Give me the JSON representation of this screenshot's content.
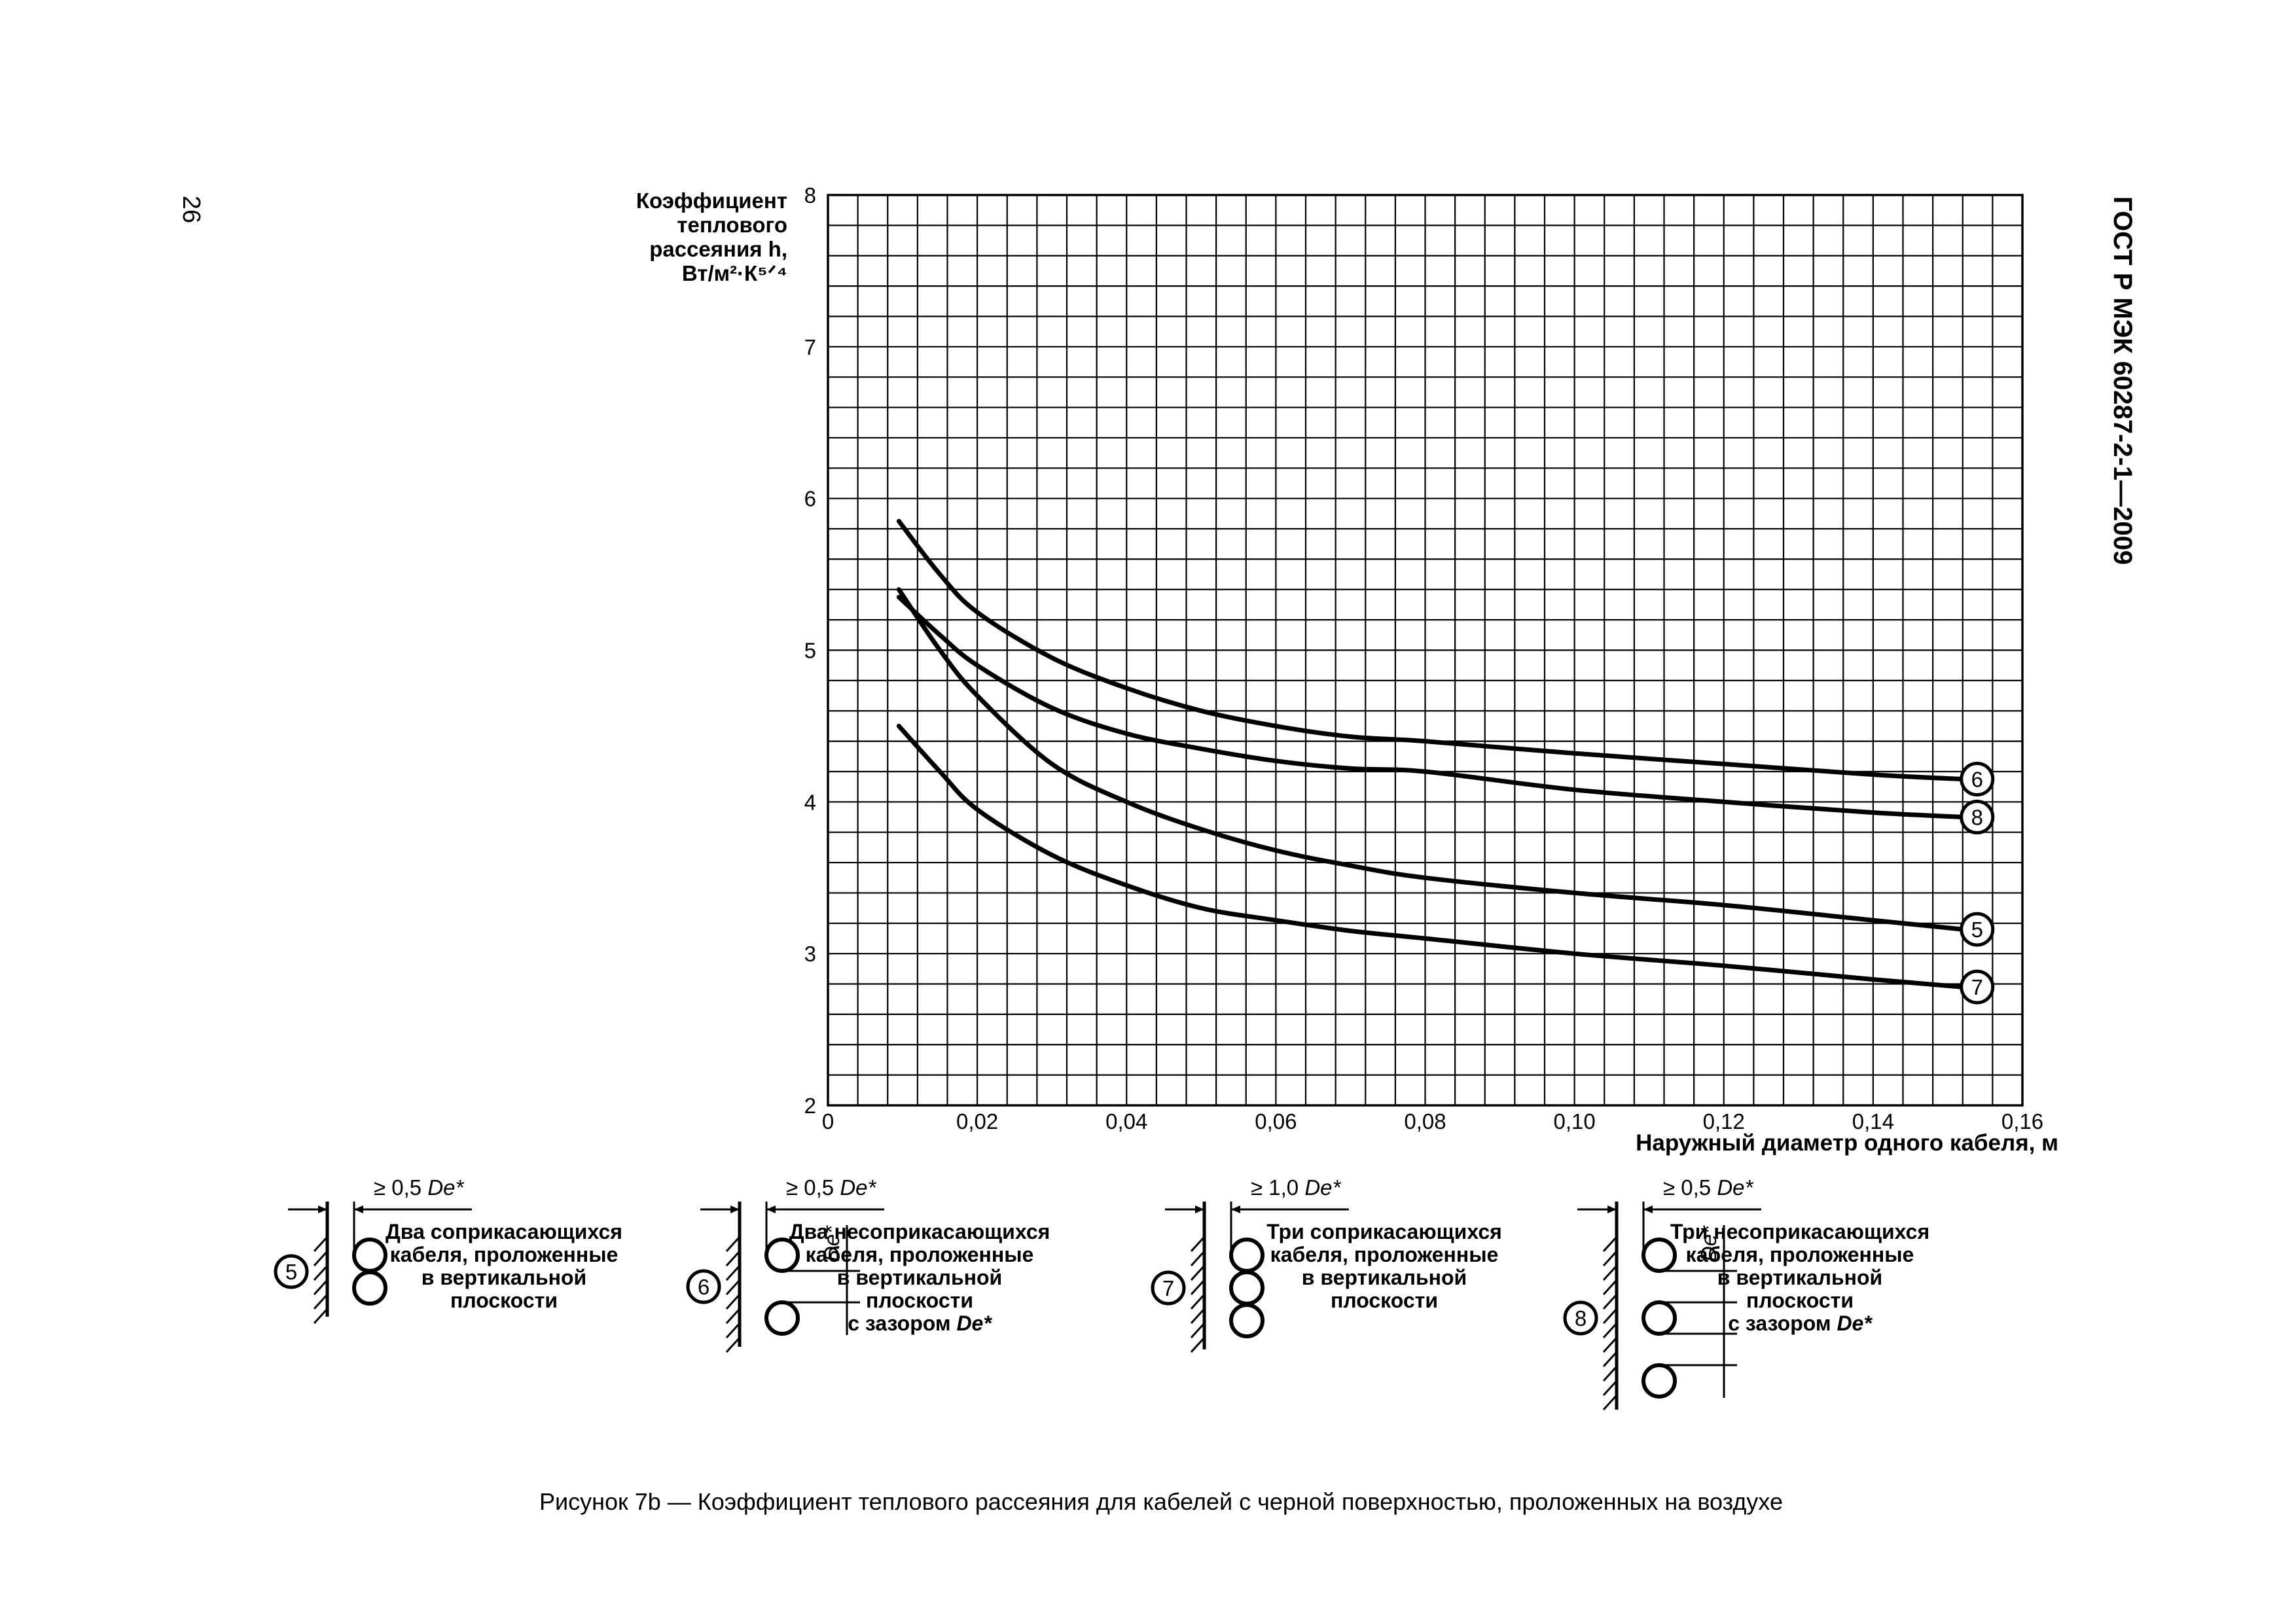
{
  "page_number": "26",
  "document_header": "ГОСТ Р МЭК 60287-2-1—2009",
  "figure_caption": "Рисунок 7b — Коэффициент теплового рассеяния для кабелей с черной поверхностью, проложенных на воздухе",
  "chart_data": {
    "type": "line",
    "ylabel": [
      "Коэффициент",
      "теплового",
      "рассеяния h,",
      "Вт/м²·К⁵ᐟ⁴"
    ],
    "xlabel": "Наружный диаметр одного кабеля, м",
    "xlim": [
      0,
      0.16
    ],
    "ylim": [
      2,
      8
    ],
    "x_ticks": [
      "0",
      "0,02",
      "0,04",
      "0,06",
      "0,08",
      "0,10",
      "0,12",
      "0,14",
      "0,16"
    ],
    "y_ticks": [
      "2",
      "3",
      "4",
      "5",
      "6",
      "7",
      "8"
    ],
    "grid": true,
    "series": [
      {
        "name": "6",
        "x": [
          0.0095,
          0.015,
          0.02,
          0.03,
          0.04,
          0.05,
          0.06,
          0.07,
          0.08,
          0.1,
          0.12,
          0.14,
          0.152
        ],
        "y": [
          5.85,
          5.5,
          5.25,
          4.95,
          4.75,
          4.6,
          4.5,
          4.43,
          4.4,
          4.32,
          4.25,
          4.18,
          4.15
        ]
      },
      {
        "name": "8",
        "x": [
          0.0095,
          0.015,
          0.02,
          0.03,
          0.04,
          0.05,
          0.06,
          0.07,
          0.08,
          0.1,
          0.12,
          0.14,
          0.152
        ],
        "y": [
          5.35,
          5.1,
          4.9,
          4.62,
          4.45,
          4.35,
          4.27,
          4.22,
          4.2,
          4.08,
          4.0,
          3.93,
          3.9
        ]
      },
      {
        "name": "5",
        "x": [
          0.0095,
          0.015,
          0.02,
          0.03,
          0.04,
          0.05,
          0.06,
          0.07,
          0.08,
          0.1,
          0.12,
          0.14,
          0.152
        ],
        "y": [
          5.4,
          5.0,
          4.7,
          4.25,
          4.0,
          3.82,
          3.68,
          3.58,
          3.5,
          3.4,
          3.32,
          3.22,
          3.16
        ]
      },
      {
        "name": "7",
        "x": [
          0.0095,
          0.015,
          0.02,
          0.03,
          0.04,
          0.05,
          0.06,
          0.07,
          0.08,
          0.1,
          0.12,
          0.14,
          0.152
        ],
        "y": [
          4.5,
          4.2,
          3.95,
          3.65,
          3.45,
          3.3,
          3.22,
          3.15,
          3.1,
          3.0,
          2.92,
          2.83,
          2.78
        ]
      }
    ]
  },
  "configurations": [
    {
      "num": "5",
      "gap": "≥ 0,5",
      "lines": [
        "Два соприкасающихся",
        "кабеля, проложенные",
        "в вертикальной",
        "плоскости"
      ]
    },
    {
      "num": "6",
      "gap": "≥ 0,5",
      "lines": [
        "Два несоприкасающихся",
        "кабеля, проложенные",
        "в вертикальной",
        "плоскости",
        "с зазором"
      ]
    },
    {
      "num": "7",
      "gap": "≥ 1,0",
      "lines": [
        "Три соприкасающихся",
        "кабеля, проложенные",
        "в вертикальной",
        "плоскости"
      ]
    },
    {
      "num": "8",
      "gap": "≥ 0,5",
      "lines": [
        "Три несоприкасающихся",
        "кабеля, проложенные",
        "в вертикальной",
        "плоскости",
        "с зазором"
      ]
    }
  ],
  "de_symbol": "De*",
  "colors": {
    "ink": "#000000",
    "paper": "#ffffff"
  }
}
